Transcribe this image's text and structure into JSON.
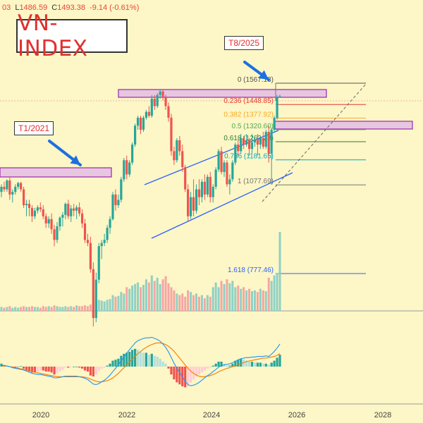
{
  "header": {
    "ohlc_parts": [
      {
        "key": "",
        "val": "03"
      },
      {
        "key": "L",
        "val": "1486.59"
      },
      {
        "key": "C",
        "val": "1493.38"
      },
      {
        "key": "",
        "val": "-9.14 (-0.61%)"
      }
    ]
  },
  "title": "VN-INDEX",
  "annotations": {
    "t1": "T1/2021",
    "t8": "T8/2025"
  },
  "colors": {
    "up": "#26a69a",
    "down": "#ef5350",
    "background": "#fdf6c6",
    "channel": "#2962ff",
    "zone_fill": "#e7c6df",
    "zone_border": "#9c27b0",
    "macd": "#2196f3",
    "signal": "#f57c00"
  },
  "chart_data": {
    "type": "candlestick",
    "timeframe": "monthly",
    "x_ticks": [
      "2020",
      "2022",
      "2024",
      "2026",
      "2028"
    ],
    "fibonacci": [
      {
        "level": "0",
        "value": 1567.0,
        "label": "0 (1567.13)",
        "color": "#555555"
      },
      {
        "level": "0.236",
        "value": 1448.85,
        "label": "0.236 (1448.85)",
        "color": "#e53935"
      },
      {
        "level": "0.382",
        "value": 1377.92,
        "label": "0.382 (1377.92)",
        "color": "#f9a825"
      },
      {
        "level": "0.5",
        "value": 1320.6,
        "label": "0.5 (1320.60)",
        "color": "#4caf50"
      },
      {
        "level": "0.618",
        "value": 1263.28,
        "label": "0.618 (1263.28)",
        "color": "#2e7d32"
      },
      {
        "level": "0.786",
        "value": 1181.65,
        "label": "0.786 (1181.65)",
        "color": "#00acc1"
      },
      {
        "level": "1",
        "value": 1077.69,
        "label": "1 (1077.69)",
        "color": "#757575"
      },
      {
        "level": "1.618",
        "value": 777.46,
        "label": "1.618 (777.46)",
        "color": "#2962ff"
      }
    ],
    "candles": [
      [
        1050,
        1080,
        1030,
        1070
      ],
      [
        1070,
        1090,
        1050,
        1060
      ],
      [
        1060,
        1100,
        1050,
        1095
      ],
      [
        1095,
        1110,
        1020,
        1040
      ],
      [
        1040,
        1060,
        1010,
        1050
      ],
      [
        1050,
        1080,
        1040,
        1070
      ],
      [
        1070,
        1090,
        1060,
        1085
      ],
      [
        1085,
        1090,
        1050,
        1060
      ],
      [
        1060,
        1070,
        990,
        1000
      ],
      [
        1000,
        1020,
        960,
        1005
      ],
      [
        1005,
        1020,
        960,
        990
      ],
      [
        990,
        1000,
        940,
        960
      ],
      [
        960,
        990,
        950,
        980
      ],
      [
        980,
        1000,
        970,
        992
      ],
      [
        992,
        1010,
        975,
        985
      ],
      [
        985,
        1000,
        950,
        960
      ],
      [
        960,
        970,
        920,
        935
      ],
      [
        935,
        960,
        920,
        950
      ],
      [
        950,
        970,
        900,
        915
      ],
      [
        915,
        930,
        860,
        880
      ],
      [
        880,
        940,
        870,
        925
      ],
      [
        925,
        960,
        910,
        955
      ],
      [
        955,
        975,
        925,
        965
      ],
      [
        965,
        1010,
        950,
        1005
      ],
      [
        1005,
        1020,
        950,
        960
      ],
      [
        960,
        1000,
        940,
        988
      ],
      [
        988,
        1005,
        960,
        980
      ],
      [
        980,
        1000,
        950,
        992
      ],
      [
        992,
        1010,
        960,
        970
      ],
      [
        970,
        985,
        920,
        935
      ],
      [
        935,
        950,
        870,
        880
      ],
      [
        880,
        900,
        860,
        870
      ],
      [
        870,
        890,
        780,
        790
      ],
      [
        790,
        810,
        640,
        660
      ],
      [
        660,
        780,
        650,
        760
      ],
      [
        760,
        870,
        750,
        860
      ],
      [
        860,
        880,
        820,
        870
      ],
      [
        870,
        900,
        860,
        880
      ],
      [
        880,
        930,
        870,
        920
      ],
      [
        920,
        960,
        900,
        950
      ],
      [
        950,
        1050,
        945,
        1040
      ],
      [
        1040,
        1060,
        980,
        1000
      ],
      [
        1000,
        1040,
        990,
        1020
      ],
      [
        1020,
        1110,
        1010,
        1100
      ],
      [
        1100,
        1190,
        1090,
        1180
      ],
      [
        1180,
        1200,
        1100,
        1120
      ],
      [
        1120,
        1180,
        1110,
        1170
      ],
      [
        1170,
        1260,
        1160,
        1250
      ],
      [
        1250,
        1350,
        1240,
        1340
      ],
      [
        1340,
        1390,
        1320,
        1380
      ],
      [
        1380,
        1390,
        1300,
        1320
      ],
      [
        1320,
        1390,
        1310,
        1380
      ],
      [
        1380,
        1420,
        1370,
        1410
      ],
      [
        1410,
        1440,
        1380,
        1390
      ],
      [
        1390,
        1500,
        1380,
        1480
      ],
      [
        1480,
        1500,
        1420,
        1440
      ],
      [
        1440,
        1510,
        1430,
        1500
      ],
      [
        1500,
        1530,
        1480,
        1520
      ],
      [
        1520,
        1530,
        1470,
        1485
      ],
      [
        1485,
        1500,
        1420,
        1440
      ],
      [
        1440,
        1460,
        1360,
        1380
      ],
      [
        1380,
        1400,
        1200,
        1220
      ],
      [
        1220,
        1240,
        1160,
        1180
      ],
      [
        1180,
        1280,
        1170,
        1270
      ],
      [
        1270,
        1290,
        1200,
        1220
      ],
      [
        1220,
        1250,
        1130,
        1150
      ],
      [
        1150,
        1160,
        1050,
        1060
      ],
      [
        1060,
        1080,
        940,
        960
      ],
      [
        960,
        1050,
        950,
        1030
      ],
      [
        1030,
        1100,
        960,
        980
      ],
      [
        980,
        1080,
        970,
        1060
      ],
      [
        1060,
        1100,
        1000,
        1030
      ],
      [
        1030,
        1100,
        1010,
        1090
      ],
      [
        1090,
        1120,
        1020,
        1040
      ],
      [
        1040,
        1120,
        1030,
        1110
      ],
      [
        1110,
        1130,
        1010,
        1030
      ],
      [
        1030,
        1080,
        1010,
        1070
      ],
      [
        1070,
        1150,
        1060,
        1140
      ],
      [
        1140,
        1230,
        1130,
        1220
      ],
      [
        1220,
        1240,
        1120,
        1130
      ],
      [
        1130,
        1180,
        1110,
        1170
      ],
      [
        1170,
        1180,
        1070,
        1080
      ],
      [
        1080,
        1120,
        1040,
        1100
      ],
      [
        1100,
        1180,
        1090,
        1170
      ],
      [
        1170,
        1260,
        1160,
        1250
      ],
      [
        1250,
        1270,
        1200,
        1220
      ],
      [
        1220,
        1300,
        1210,
        1280
      ],
      [
        1280,
        1290,
        1230,
        1250
      ],
      [
        1250,
        1300,
        1240,
        1270
      ],
      [
        1270,
        1280,
        1200,
        1230
      ],
      [
        1230,
        1300,
        1210,
        1260
      ],
      [
        1260,
        1280,
        1240,
        1270
      ],
      [
        1270,
        1300,
        1200,
        1250
      ],
      [
        1250,
        1290,
        1230,
        1280
      ],
      [
        1280,
        1310,
        1230,
        1240
      ],
      [
        1240,
        1320,
        1230,
        1310
      ],
      [
        1310,
        1340,
        1170,
        1210
      ],
      [
        1210,
        1330,
        1080,
        1320
      ],
      [
        1320,
        1390,
        1310,
        1380
      ],
      [
        1380,
        1500,
        1370,
        1490
      ],
      [
        1490,
        1503,
        1486,
        1493
      ]
    ],
    "volume": [
      0.05,
      0.04,
      0.05,
      0.06,
      0.04,
      0.05,
      0.04,
      0.05,
      0.06,
      0.05,
      0.05,
      0.06,
      0.05,
      0.05,
      0.04,
      0.06,
      0.05,
      0.06,
      0.05,
      0.07,
      0.06,
      0.05,
      0.05,
      0.06,
      0.05,
      0.06,
      0.05,
      0.07,
      0.06,
      0.06,
      0.07,
      0.06,
      0.08,
      0.1,
      0.12,
      0.14,
      0.13,
      0.12,
      0.14,
      0.15,
      0.2,
      0.18,
      0.19,
      0.24,
      0.22,
      0.3,
      0.28,
      0.32,
      0.34,
      0.36,
      0.3,
      0.33,
      0.4,
      0.36,
      0.45,
      0.38,
      0.42,
      0.34,
      0.4,
      0.44,
      0.35,
      0.3,
      0.26,
      0.22,
      0.2,
      0.22,
      0.18,
      0.26,
      0.24,
      0.2,
      0.22,
      0.18,
      0.2,
      0.16,
      0.2,
      0.18,
      0.3,
      0.36,
      0.3,
      0.38,
      0.34,
      0.4,
      0.35,
      0.38,
      0.3,
      0.32,
      0.28,
      0.3,
      0.26,
      0.28,
      0.25,
      0.26,
      0.24,
      0.28,
      0.26,
      0.25,
      0.42,
      0.38,
      0.45,
      0.48,
      1.0
    ],
    "macd": {
      "histogram": [
        0.3,
        0.2,
        0.1,
        0.0,
        -0.1,
        -0.1,
        0.0,
        0.05,
        -0.2,
        -0.4,
        -0.5,
        -0.6,
        -0.6,
        -0.5,
        -0.4,
        -0.4,
        -0.5,
        -0.5,
        -0.6,
        -0.8,
        -0.7,
        -0.5,
        -0.3,
        -0.1,
        -0.1,
        -0.05,
        0.0,
        0.0,
        -0.1,
        -0.2,
        -0.4,
        -0.5,
        -0.9,
        -1.0,
        -0.8,
        -0.4,
        -0.2,
        -0.1,
        0.1,
        0.3,
        0.6,
        0.7,
        0.8,
        1.1,
        1.3,
        1.4,
        1.5,
        1.7,
        1.8,
        1.7,
        1.5,
        1.4,
        1.4,
        1.2,
        1.3,
        1.1,
        1.0,
        0.8,
        0.5,
        0.3,
        -0.2,
        -0.8,
        -1.3,
        -1.6,
        -1.8,
        -2.0,
        -2.1,
        -2.0,
        -1.6,
        -1.3,
        -1.0,
        -0.8,
        -0.6,
        -0.4,
        -0.2,
        -0.1,
        0.1,
        0.3,
        0.5,
        0.5,
        0.3,
        0.1,
        0.1,
        0.3,
        0.6,
        0.7,
        0.8,
        0.7,
        0.6,
        0.5,
        0.5,
        0.4,
        0.4,
        0.4,
        0.3,
        0.3,
        0.2,
        0.4,
        0.6,
        0.9,
        1.2
      ],
      "macd_line": [
        0.2,
        0.2,
        0.1,
        0.0,
        -0.2,
        -0.3,
        -0.4,
        -0.5,
        -0.6,
        -0.8,
        -1.0,
        -1.2,
        -1.3,
        -1.4,
        -1.4,
        -1.5,
        -1.6,
        -1.7,
        -1.8,
        -2.0,
        -2.0,
        -1.9,
        -1.8,
        -1.7,
        -1.7,
        -1.7,
        -1.7,
        -1.7,
        -1.8,
        -1.9,
        -2.1,
        -2.3,
        -2.7,
        -3.1,
        -3.2,
        -3.0,
        -2.7,
        -2.4,
        -2.0,
        -1.5,
        -0.9,
        -0.3,
        0.3,
        1.0,
        1.7,
        2.4,
        3.0,
        3.6,
        4.2,
        4.6,
        4.8,
        5.0,
        5.1,
        5.1,
        5.2,
        5.0,
        4.8,
        4.5,
        4.0,
        3.4,
        2.6,
        1.6,
        0.6,
        -0.3,
        -1.0,
        -1.8,
        -2.6,
        -3.2,
        -3.4,
        -3.3,
        -3.1,
        -2.8,
        -2.4,
        -2.0,
        -1.6,
        -1.3,
        -0.9,
        -0.5,
        -0.1,
        0.2,
        0.3,
        0.4,
        0.5,
        0.7,
        0.9,
        1.2,
        1.4,
        1.5,
        1.6,
        1.6,
        1.7,
        1.7,
        1.8,
        1.8,
        1.8,
        1.9,
        1.8,
        2.2,
        2.7,
        3.3,
        4.0
      ],
      "signal_line": [
        0.1,
        0.1,
        0.1,
        0.0,
        -0.1,
        -0.2,
        -0.3,
        -0.4,
        -0.5,
        -0.6,
        -0.8,
        -0.9,
        -1.0,
        -1.1,
        -1.2,
        -1.3,
        -1.4,
        -1.5,
        -1.6,
        -1.7,
        -1.8,
        -1.8,
        -1.8,
        -1.8,
        -1.8,
        -1.8,
        -1.8,
        -1.8,
        -1.8,
        -1.8,
        -1.9,
        -2.0,
        -2.2,
        -2.4,
        -2.6,
        -2.7,
        -2.7,
        -2.6,
        -2.5,
        -2.3,
        -2.0,
        -1.6,
        -1.2,
        -0.7,
        -0.2,
        0.3,
        0.8,
        1.3,
        1.8,
        2.3,
        2.7,
        3.1,
        3.4,
        3.7,
        3.9,
        4.1,
        4.2,
        4.2,
        4.1,
        3.9,
        3.6,
        3.2,
        2.7,
        2.1,
        1.5,
        0.9,
        0.3,
        -0.3,
        -0.8,
        -1.2,
        -1.5,
        -1.7,
        -1.8,
        -1.8,
        -1.7,
        -1.6,
        -1.4,
        -1.2,
        -0.9,
        -0.7,
        -0.5,
        -0.3,
        -0.2,
        0.0,
        0.1,
        0.3,
        0.5,
        0.7,
        0.9,
        1.0,
        1.1,
        1.2,
        1.3,
        1.4,
        1.5,
        1.5,
        1.6,
        1.7,
        1.8,
        2.0,
        2.3
      ]
    }
  }
}
